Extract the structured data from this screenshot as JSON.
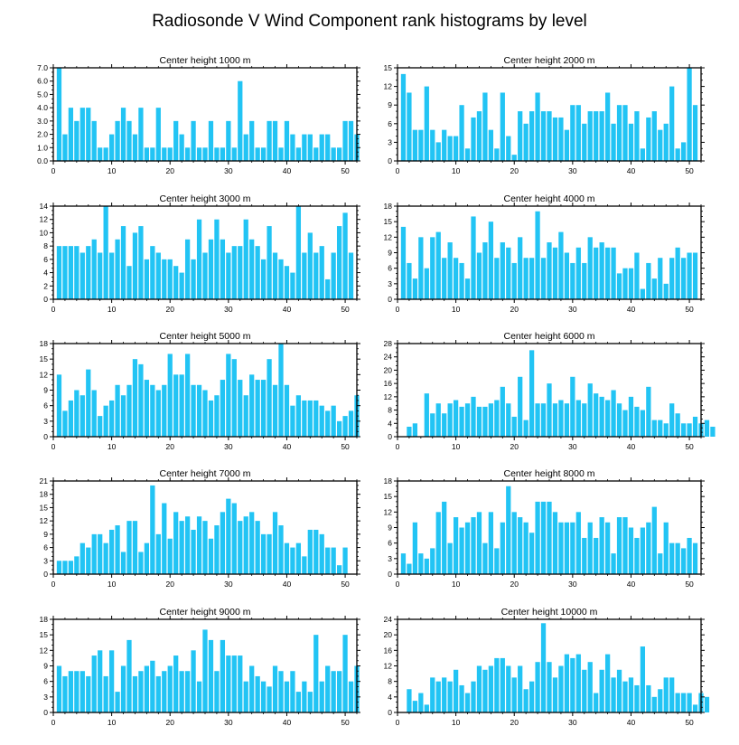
{
  "title": "Radiosonde V Wind Component rank histograms by level",
  "colors": {
    "bar": "#22c4f4",
    "frame": "#000000"
  },
  "chart_data": [
    {
      "type": "bar",
      "title": "Center height 1000 m",
      "x_start": 1,
      "values": [
        7,
        2,
        4,
        3,
        4,
        4,
        3,
        1,
        1,
        2,
        3,
        4,
        3,
        2,
        4,
        1,
        1,
        4,
        1,
        1,
        3,
        2,
        1,
        3,
        1,
        1,
        3,
        1,
        1,
        3,
        1,
        6,
        2,
        3,
        1,
        1,
        3,
        3,
        1,
        3,
        2,
        1,
        2,
        2,
        1,
        2,
        2,
        1,
        1,
        3,
        3,
        2
      ],
      "ylim": [
        0,
        7
      ],
      "yticks": [
        0,
        1,
        2,
        3,
        4,
        5,
        6,
        7
      ],
      "tick_decimals": 1,
      "xlim": [
        0,
        52
      ],
      "xticks": [
        0,
        10,
        20,
        30,
        40,
        50
      ]
    },
    {
      "type": "bar",
      "title": "Center height 2000 m",
      "x_start": 1,
      "values": [
        14,
        11,
        5,
        5,
        12,
        5,
        3,
        5,
        4,
        4,
        9,
        2,
        7,
        8,
        11,
        5,
        2,
        11,
        4,
        1,
        8,
        6,
        8,
        11,
        8,
        8,
        7,
        7,
        5,
        9,
        9,
        6,
        8,
        8,
        8,
        11,
        6,
        9,
        9,
        6,
        8,
        2,
        7,
        8,
        5,
        6,
        12,
        2,
        3,
        15,
        9
      ],
      "ylim": [
        0,
        15
      ],
      "yticks": [
        0,
        3,
        6,
        9,
        12,
        15
      ],
      "tick_decimals": 0,
      "xlim": [
        0,
        52
      ],
      "xticks": [
        0,
        10,
        20,
        30,
        40,
        50
      ]
    },
    {
      "type": "bar",
      "title": "Center height 3000 m",
      "x_start": 1,
      "values": [
        8,
        8,
        8,
        8,
        7,
        8,
        9,
        7,
        14,
        7,
        9,
        11,
        5,
        10,
        11,
        6,
        8,
        7,
        6,
        6,
        5,
        4,
        9,
        6,
        12,
        7,
        9,
        12,
        9,
        7,
        8,
        8,
        12,
        9,
        8,
        6,
        11,
        7,
        6,
        5,
        4,
        14,
        7,
        10,
        7,
        8,
        3,
        7,
        11,
        13,
        7
      ],
      "ylim": [
        0,
        14
      ],
      "yticks": [
        0,
        2,
        4,
        6,
        8,
        10,
        12,
        14
      ],
      "tick_decimals": 0,
      "xlim": [
        0,
        52
      ],
      "xticks": [
        0,
        10,
        20,
        30,
        40,
        50
      ]
    },
    {
      "type": "bar",
      "title": "Center height 4000 m",
      "x_start": 1,
      "values": [
        14,
        7,
        4,
        12,
        6,
        12,
        13,
        8,
        11,
        8,
        7,
        4,
        16,
        9,
        11,
        15,
        8,
        11,
        10,
        7,
        12,
        8,
        8,
        17,
        8,
        11,
        10,
        13,
        9,
        7,
        10,
        7,
        12,
        10,
        11,
        10,
        10,
        5,
        6,
        6,
        9,
        2,
        7,
        4,
        8,
        3,
        8,
        10,
        8,
        9,
        9
      ],
      "ylim": [
        0,
        18
      ],
      "yticks": [
        0,
        3,
        6,
        9,
        12,
        15,
        18
      ],
      "tick_decimals": 0,
      "xlim": [
        0,
        52
      ],
      "xticks": [
        0,
        10,
        20,
        30,
        40,
        50
      ]
    },
    {
      "type": "bar",
      "title": "Center height 5000 m",
      "x_start": 1,
      "values": [
        12,
        5,
        7,
        9,
        8,
        13,
        9,
        4,
        6,
        7,
        10,
        8,
        10,
        15,
        14,
        11,
        10,
        9,
        10,
        16,
        12,
        12,
        16,
        10,
        10,
        9,
        7,
        8,
        11,
        16,
        15,
        11,
        8,
        12,
        11,
        11,
        15,
        10,
        18,
        10,
        6,
        8,
        7,
        7,
        7,
        6,
        5,
        6,
        3,
        4,
        5,
        8
      ],
      "ylim": [
        0,
        18
      ],
      "yticks": [
        0,
        3,
        6,
        9,
        12,
        15,
        18
      ],
      "tick_decimals": 0,
      "xlim": [
        0,
        52
      ],
      "xticks": [
        0,
        10,
        20,
        30,
        40,
        50
      ]
    },
    {
      "type": "bar",
      "title": "Center height 6000 m",
      "x_start": 2,
      "values": [
        3,
        4,
        0,
        13,
        7,
        10,
        7,
        10,
        11,
        9,
        10,
        12,
        9,
        9,
        10,
        11,
        15,
        10,
        6,
        18,
        5,
        26,
        10,
        10,
        16,
        10,
        11,
        10,
        18,
        11,
        10,
        16,
        13,
        12,
        11,
        14,
        10,
        8,
        12,
        9,
        8,
        15,
        5,
        5,
        4,
        10,
        7,
        4,
        4,
        6,
        4,
        5,
        3
      ],
      "ylim": [
        0,
        28
      ],
      "yticks": [
        0,
        4,
        8,
        12,
        16,
        20,
        24,
        28
      ],
      "tick_decimals": 0,
      "xlim": [
        0,
        52
      ],
      "xticks": [
        0,
        10,
        20,
        30,
        40,
        50
      ]
    },
    {
      "type": "bar",
      "title": "Center height 7000 m",
      "x_start": 1,
      "values": [
        3,
        3,
        3,
        4,
        7,
        6,
        9,
        9,
        7,
        10,
        11,
        5,
        12,
        12,
        5,
        7,
        20,
        9,
        16,
        8,
        14,
        12,
        13,
        10,
        13,
        12,
        8,
        11,
        14,
        17,
        16,
        12,
        13,
        14,
        12,
        9,
        9,
        14,
        11,
        7,
        6,
        7,
        4,
        10,
        10,
        9,
        6,
        6,
        2,
        6
      ],
      "ylim": [
        0,
        21
      ],
      "yticks": [
        0,
        3,
        6,
        9,
        12,
        15,
        18,
        21
      ],
      "tick_decimals": 0,
      "xlim": [
        0,
        52
      ],
      "xticks": [
        0,
        10,
        20,
        30,
        40,
        50
      ]
    },
    {
      "type": "bar",
      "title": "Center height 8000 m",
      "x_start": 1,
      "values": [
        4,
        2,
        10,
        4,
        3,
        5,
        12,
        14,
        6,
        11,
        9,
        10,
        11,
        12,
        6,
        12,
        5,
        10,
        17,
        12,
        11,
        10,
        8,
        14,
        14,
        14,
        12,
        10,
        10,
        10,
        12,
        7,
        10,
        7,
        11,
        10,
        4,
        11,
        11,
        9,
        7,
        9,
        10,
        13,
        4,
        10,
        6,
        6,
        5,
        7,
        6
      ],
      "ylim": [
        0,
        18
      ],
      "yticks": [
        0,
        3,
        6,
        9,
        12,
        15,
        18
      ],
      "tick_decimals": 0,
      "xlim": [
        0,
        52
      ],
      "xticks": [
        0,
        10,
        20,
        30,
        40,
        50
      ]
    },
    {
      "type": "bar",
      "title": "Center height 9000 m",
      "x_start": 1,
      "values": [
        9,
        7,
        8,
        8,
        8,
        7,
        11,
        12,
        7,
        12,
        4,
        9,
        14,
        7,
        8,
        9,
        10,
        7,
        8,
        9,
        11,
        8,
        8,
        12,
        6,
        16,
        14,
        8,
        14,
        11,
        11,
        11,
        6,
        9,
        7,
        6,
        5,
        9,
        8,
        6,
        8,
        4,
        6,
        4,
        15,
        6,
        9,
        8,
        8,
        15,
        6,
        9
      ],
      "ylim": [
        0,
        18
      ],
      "yticks": [
        0,
        3,
        6,
        9,
        12,
        15,
        18
      ],
      "tick_decimals": 0,
      "xlim": [
        0,
        52
      ],
      "xticks": [
        0,
        10,
        20,
        30,
        40,
        50
      ]
    },
    {
      "type": "bar",
      "title": "Center height 10000 m",
      "x_start": 2,
      "values": [
        6,
        3,
        5,
        2,
        9,
        8,
        9,
        8,
        11,
        7,
        5,
        8,
        12,
        11,
        12,
        14,
        14,
        12,
        9,
        12,
        6,
        8,
        13,
        23,
        13,
        9,
        12,
        15,
        14,
        15,
        11,
        13,
        5,
        11,
        15,
        9,
        11,
        8,
        9,
        7,
        17,
        7,
        4,
        6,
        9,
        9,
        5,
        5,
        5,
        2,
        5,
        4
      ],
      "ylim": [
        0,
        24
      ],
      "yticks": [
        0,
        4,
        8,
        12,
        16,
        20,
        24
      ],
      "tick_decimals": 0,
      "xlim": [
        0,
        52
      ],
      "xticks": [
        0,
        10,
        20,
        30,
        40,
        50
      ]
    }
  ]
}
